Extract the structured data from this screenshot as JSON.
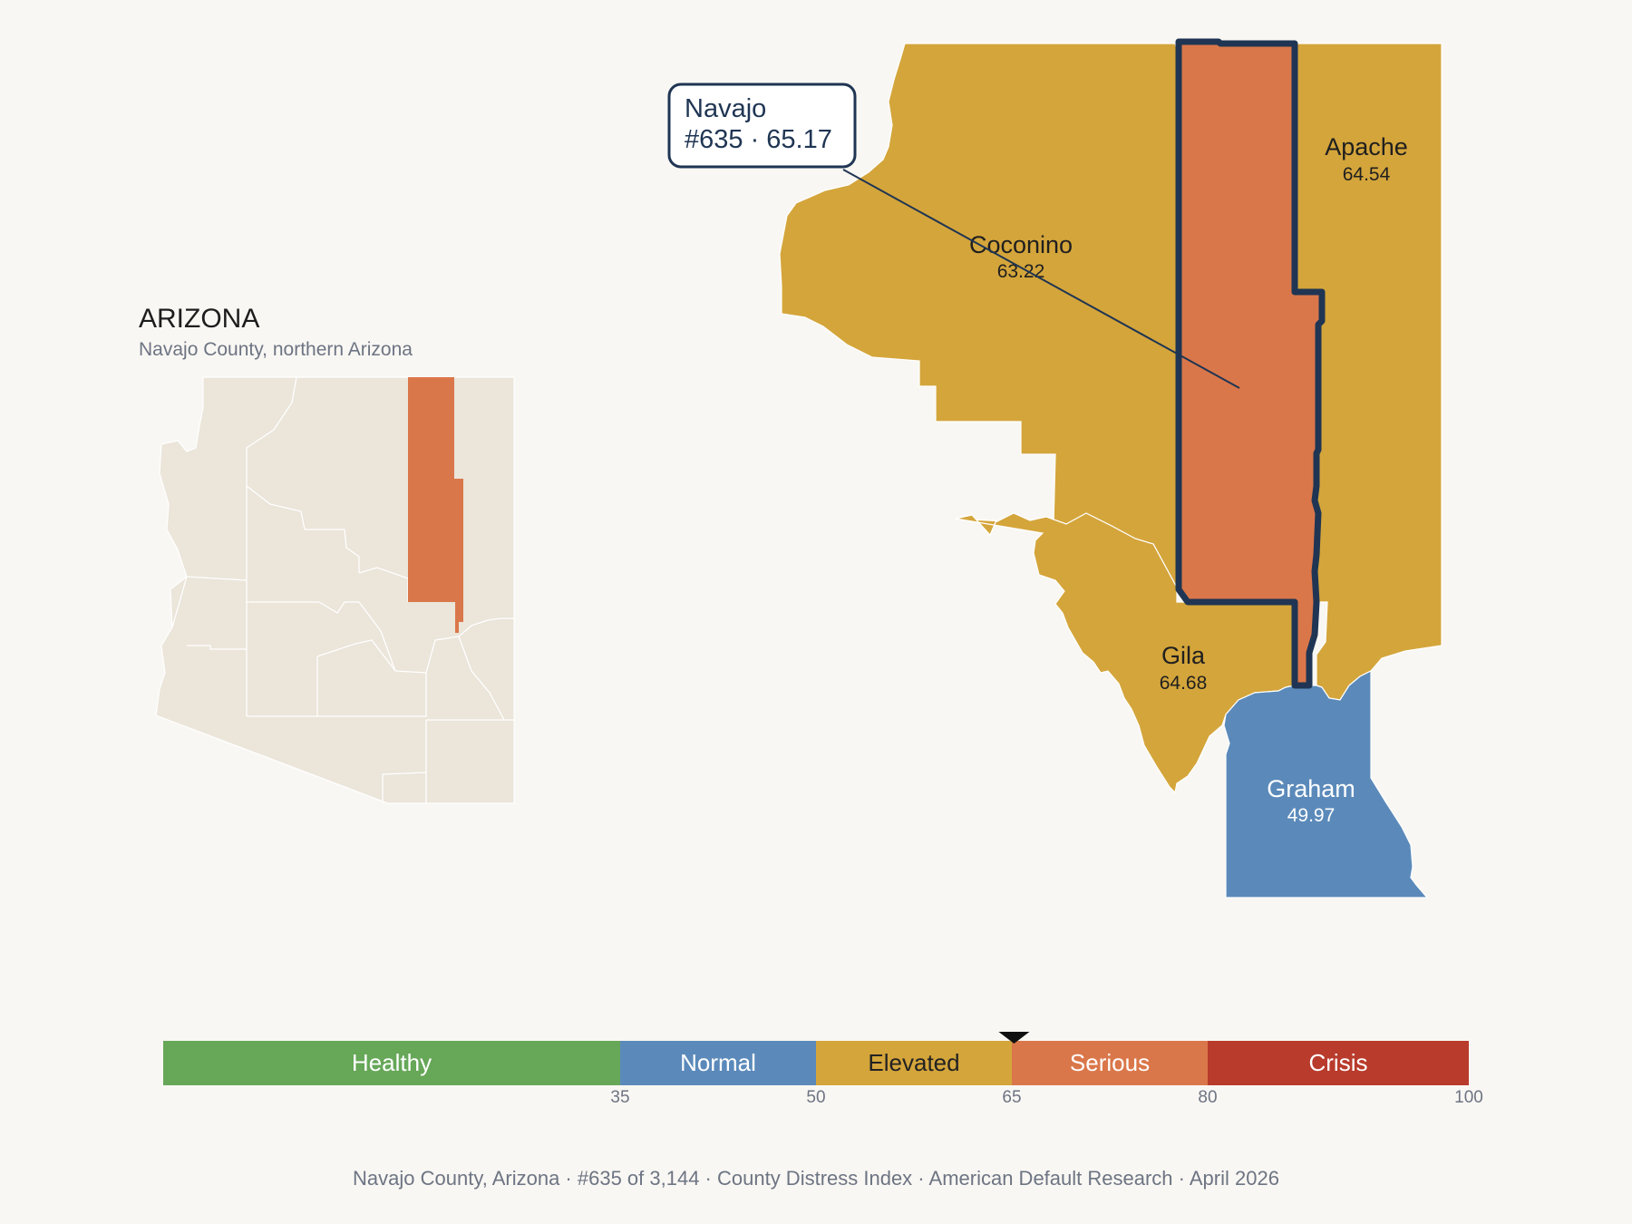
{
  "inset": {
    "title": "ARIZONA",
    "subtitle": "Navajo County, northern Arizona"
  },
  "callout": {
    "name": "Navajo",
    "detail": "#635 · 65.17"
  },
  "counties": {
    "coconino": {
      "name": "Coconino",
      "score": "63.22",
      "color": "#d4a53b"
    },
    "navajo": {
      "name": "Navajo",
      "score": "65.17",
      "color": "#da774a"
    },
    "apache": {
      "name": "Apache",
      "score": "64.54",
      "color": "#d4a53b"
    },
    "gila": {
      "name": "Gila",
      "score": "64.68",
      "color": "#d4a53b"
    },
    "graham": {
      "name": "Graham",
      "score": "49.97",
      "color": "#5b8aba"
    }
  },
  "scale": {
    "bands": [
      {
        "label": "Healthy",
        "from": 0,
        "to": 35,
        "color": "#66a758",
        "text_color": "#ffffff"
      },
      {
        "label": "Normal",
        "from": 35,
        "to": 50,
        "color": "#5b8aba",
        "text_color": "#ffffff"
      },
      {
        "label": "Elevated",
        "from": 50,
        "to": 65,
        "color": "#d4a53b",
        "text_color": "#222222"
      },
      {
        "label": "Serious",
        "from": 65,
        "to": 80,
        "color": "#da774a",
        "text_color": "#ffffff"
      },
      {
        "label": "Crisis",
        "from": 80,
        "to": 100,
        "color": "#b83b2c",
        "text_color": "#ffffff"
      }
    ],
    "ticks": [
      "35",
      "50",
      "65",
      "80",
      "100"
    ],
    "marker_value": 65.17
  },
  "footer": "Navajo County, Arizona  ·  #635 of 3,144  ·  County Distress Index  ·  American Default Research  ·  April 2026"
}
